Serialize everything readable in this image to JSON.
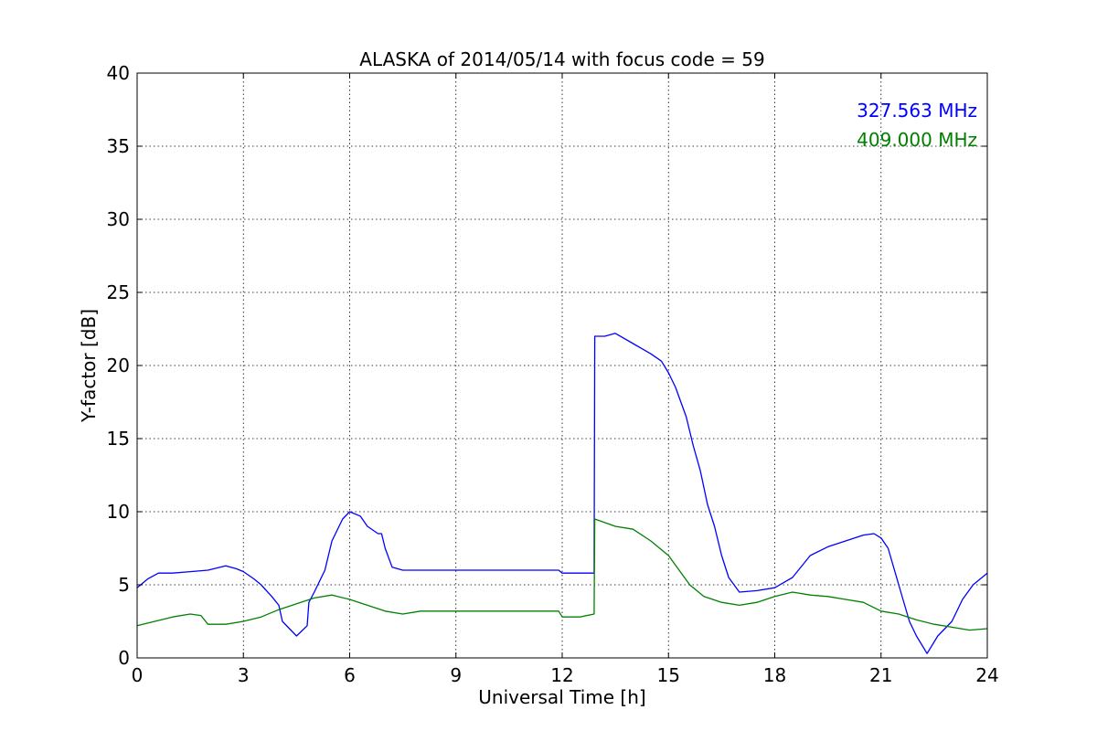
{
  "chart_data": {
    "type": "line",
    "title": "ALASKA of 2014/05/14 with focus code = 59",
    "xlabel": "Universal Time [h]",
    "ylabel": "Y-factor [dB]",
    "xlim": [
      0,
      24
    ],
    "ylim": [
      0,
      40
    ],
    "xticks": [
      0,
      3,
      6,
      9,
      12,
      15,
      18,
      21,
      24
    ],
    "yticks": [
      0,
      5,
      10,
      15,
      20,
      25,
      30,
      35,
      40
    ],
    "xtick_labels": [
      "0",
      "3",
      "6",
      "9",
      "12",
      "15",
      "18",
      "21",
      "24"
    ],
    "ytick_labels": [
      "0",
      "5",
      "10",
      "15",
      "20",
      "25",
      "30",
      "35",
      "40"
    ],
    "grid": true,
    "legend_position": "top-right",
    "series": [
      {
        "name": "327.563 MHz",
        "color": "#0000ff",
        "x": [
          0,
          0.3,
          0.6,
          1,
          1.5,
          2,
          2.5,
          2.8,
          3,
          3.3,
          3.5,
          3.8,
          4,
          4.1,
          4.3,
          4.5,
          4.8,
          4.85,
          5,
          5.3,
          5.5,
          5.8,
          6,
          6.3,
          6.5,
          6.8,
          6.9,
          7,
          7.2,
          7.5,
          7.8,
          8.0,
          11.9,
          12.0,
          12.5,
          12.9,
          12.92,
          13.2,
          13.5,
          14,
          14.5,
          14.8,
          15,
          15.2,
          15.5,
          15.7,
          15.9,
          16.1,
          16.3,
          16.5,
          16.7,
          17,
          17.5,
          18,
          18.5,
          19,
          19.5,
          20,
          20.5,
          20.8,
          21,
          21.2,
          21.5,
          21.8,
          22,
          22.3,
          22.6,
          23,
          23.3,
          23.6,
          24
        ],
        "values": [
          4.8,
          5.4,
          5.8,
          5.8,
          5.9,
          6.0,
          6.3,
          6.1,
          5.9,
          5.4,
          5.0,
          4.2,
          3.6,
          2.5,
          2.0,
          1.5,
          2.2,
          3.8,
          4.5,
          6.0,
          8.0,
          9.5,
          10.0,
          9.7,
          9.0,
          8.5,
          8.5,
          7.5,
          6.2,
          6.0,
          6.0,
          6.0,
          6.0,
          5.8,
          5.8,
          5.8,
          22.0,
          22.0,
          22.2,
          21.5,
          20.8,
          20.3,
          19.5,
          18.5,
          16.5,
          14.5,
          12.8,
          10.5,
          9.0,
          7.0,
          5.5,
          4.5,
          4.6,
          4.8,
          5.5,
          7.0,
          7.6,
          8.0,
          8.4,
          8.5,
          8.2,
          7.5,
          5.0,
          2.5,
          1.5,
          0.3,
          1.5,
          2.5,
          4.0,
          5.0,
          5.8
        ]
      },
      {
        "name": "409.000 MHz",
        "color": "#008000",
        "x": [
          0,
          0.5,
          1,
          1.5,
          1.8,
          2,
          2.5,
          3,
          3.5,
          4,
          4.5,
          5,
          5.5,
          6,
          6.5,
          7,
          7.5,
          8.0,
          11.9,
          12.0,
          12.5,
          12.9,
          12.92,
          13.5,
          14,
          14.5,
          15,
          15.3,
          15.6,
          16,
          16.5,
          17,
          17.5,
          18,
          18.5,
          19,
          19.5,
          20,
          20.5,
          21,
          21.5,
          22,
          22.5,
          23,
          23.5,
          24
        ],
        "values": [
          2.2,
          2.5,
          2.8,
          3.0,
          2.9,
          2.3,
          2.3,
          2.5,
          2.8,
          3.3,
          3.7,
          4.1,
          4.3,
          4.0,
          3.6,
          3.2,
          3.0,
          3.2,
          3.2,
          2.8,
          2.8,
          3.0,
          9.5,
          9.0,
          8.8,
          8.0,
          7.0,
          6.0,
          5.0,
          4.2,
          3.8,
          3.6,
          3.8,
          4.2,
          4.5,
          4.3,
          4.2,
          4.0,
          3.8,
          3.2,
          3.0,
          2.6,
          2.3,
          2.1,
          1.9,
          2.0
        ]
      }
    ]
  }
}
